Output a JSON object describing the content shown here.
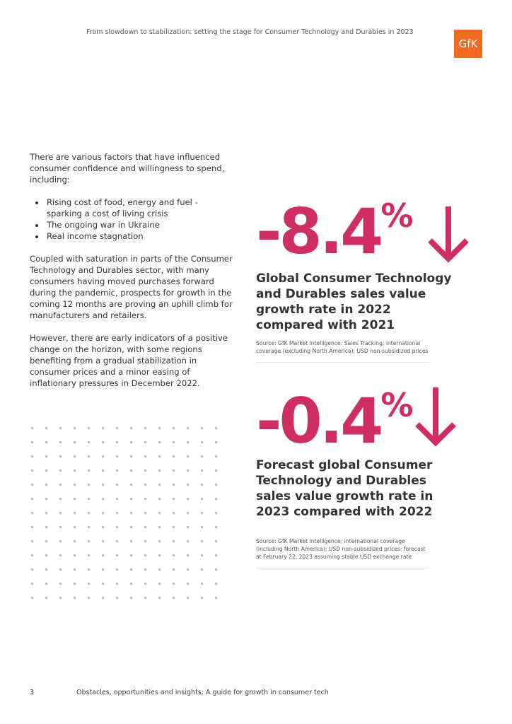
{
  "header": {
    "title": "From slowdown to stabilization: setting the stage for Consumer Technology and Durables in 2023",
    "logo": "GfK"
  },
  "body": {
    "intro": "There are various factors that have influenced consumer confidence and willingness to spend, including:",
    "bullets": [
      "Rising cost of food, energy and fuel - sparking a cost of living crisis",
      "The ongoing war in Ukraine",
      "Real income stagnation"
    ],
    "paragraphs": [
      "Coupled with saturation in parts of the Consumer Technology and Durables sector, with many consumers having moved purchases forward during the pandemic, prospects for growth in the coming 12 months are proving an uphill climb for manufacturers and retailers.",
      "However, there are early indicators of a positive change on the horizon, with some regions benefiting from a gradual stabilization in consumer prices and a minor easing of inflationary pressures in December 2022."
    ]
  },
  "stats": [
    {
      "value": "-8.4",
      "unit": "%",
      "description": "Global Consumer Technology and Durables sales value growth rate in 2022 compared with 2021",
      "source": "Source: GfK Market Intelligence: Sales Tracking; international coverage (excluding North America); USD non-subsidized prices"
    },
    {
      "value": "-0.4",
      "unit": "%",
      "description": "Forecast global Consumer Technology and Durables sales value growth rate in 2023 compared with 2022",
      "source": "Source: GfK Market Intelligence; international coverage (including North America); USD non-subsidized prices; forecast at February 22, 2023 assuming stable USD exchange rate"
    }
  ],
  "footer": {
    "page": "3",
    "title": "Obstacles, opportunities and insights: A guide for growth in consumer tech"
  }
}
